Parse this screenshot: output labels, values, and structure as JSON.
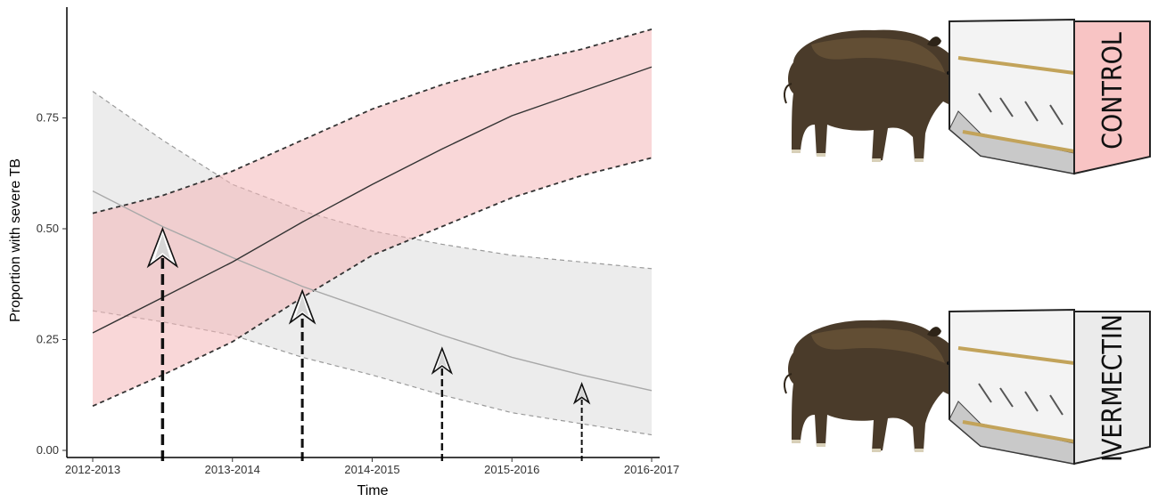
{
  "chart_data": {
    "type": "line",
    "title": "",
    "xlabel": "Time",
    "ylabel": "Proportion with severe TB",
    "categories": [
      "2012-2013",
      "2013-2014",
      "2014-2015",
      "2015-2016",
      "2016-2017"
    ],
    "y_ticks": [
      0.0,
      0.25,
      0.5,
      0.75
    ],
    "y_tick_labels": [
      "0.00",
      "0.25",
      "0.50",
      "0.75"
    ],
    "ylim": [
      0,
      1
    ],
    "grid": false,
    "legend": "none",
    "series": [
      {
        "color": "#333333",
        "band_color": "#f4b6b8",
        "line_style": "solid",
        "x": [
          0,
          0.5,
          1,
          1.5,
          2,
          2.5,
          3,
          3.5,
          4
        ],
        "values": [
          0.265,
          0.345,
          0.425,
          0.515,
          0.6,
          0.68,
          0.755,
          0.81,
          0.865
        ],
        "lower": [
          0.1,
          0.17,
          0.245,
          0.345,
          0.44,
          0.505,
          0.57,
          0.62,
          0.66
        ],
        "upper": [
          0.535,
          0.575,
          0.63,
          0.7,
          0.77,
          0.825,
          0.87,
          0.905,
          0.95
        ]
      },
      {
        "color": "#a8a8a8",
        "band_color": "#d4d4d4",
        "line_style": "solid",
        "x": [
          0,
          0.5,
          1,
          1.5,
          2,
          2.5,
          3,
          3.5,
          4
        ],
        "values": [
          0.585,
          0.505,
          0.435,
          0.37,
          0.315,
          0.26,
          0.21,
          0.17,
          0.135
        ],
        "lower": [
          0.315,
          0.29,
          0.26,
          0.21,
          0.17,
          0.125,
          0.085,
          0.06,
          0.035
        ],
        "upper": [
          0.81,
          0.7,
          0.6,
          0.54,
          0.495,
          0.465,
          0.44,
          0.425,
          0.41
        ]
      }
    ],
    "treatment_arrows": [
      {
        "x": 0.5,
        "y_top": 0.5
      },
      {
        "x": 1.5,
        "y_top": 0.36
      },
      {
        "x": 2.5,
        "y_top": 0.23
      },
      {
        "x": 3.5,
        "y_top": 0.15
      }
    ]
  },
  "illustration": {
    "feeder_top_label": "CONTROL",
    "feeder_bottom_label": "IVERMECTIN",
    "control_color": "#f8c4c4",
    "ivermectin_color": "#ebebeb",
    "icons": [
      "wild-boar-icon",
      "feeder-icon"
    ]
  }
}
